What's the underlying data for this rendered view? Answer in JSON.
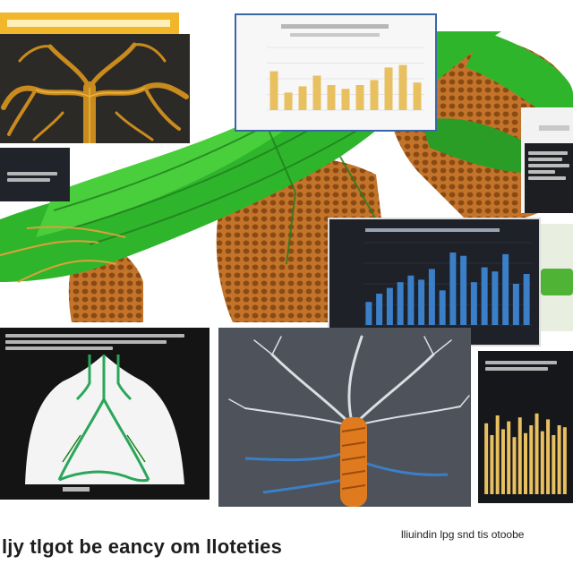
{
  "caption_main": "ljy tlgot be eancy om lloteties",
  "caption_small": "lliuindin lpg snd tis otoobe",
  "colors": {
    "green": "#2fb52c",
    "dark_green": "#1f7f1e",
    "orange": "#c97a2b",
    "honeycomb": "#b86a22",
    "bar_blue": "#3b7fc9",
    "bar_gold": "#e8c060",
    "label_gold": "#f2b62a",
    "panel_dark": "#1c1e22"
  },
  "icons": {
    "tree_icon": "branching-tree",
    "lung_icon": "lungs-outline",
    "spine_icon": "neural-tree"
  },
  "chart_data": [
    {
      "type": "bar",
      "title": "",
      "categories": [
        "",
        "",
        "",
        "",
        "",
        "",
        "",
        "",
        "",
        "",
        ""
      ],
      "values": [
        62,
        28,
        38,
        55,
        40,
        34,
        40,
        48,
        68,
        72,
        44
      ],
      "ylim": [
        0,
        100
      ],
      "grid": true
    },
    {
      "type": "bar",
      "title": "",
      "categories": [
        "",
        "",
        "",
        "",
        "",
        "",
        "",
        "",
        "",
        "",
        "",
        "",
        "",
        "",
        "",
        ""
      ],
      "values": [
        28,
        38,
        45,
        52,
        60,
        55,
        68,
        42,
        88,
        84,
        52,
        70,
        65,
        86,
        50,
        62
      ],
      "ylim": [
        0,
        100
      ],
      "grid": true
    },
    {
      "type": "bar",
      "title": "",
      "categories": [
        "",
        "",
        "",
        "",
        "",
        "",
        "",
        "",
        "",
        "",
        "",
        "",
        "",
        "",
        ""
      ],
      "values": [
        72,
        60,
        80,
        66,
        74,
        58,
        78,
        62,
        70,
        82,
        64,
        76,
        60,
        70,
        68
      ],
      "ylim": [
        0,
        100
      ],
      "grid": false
    }
  ]
}
